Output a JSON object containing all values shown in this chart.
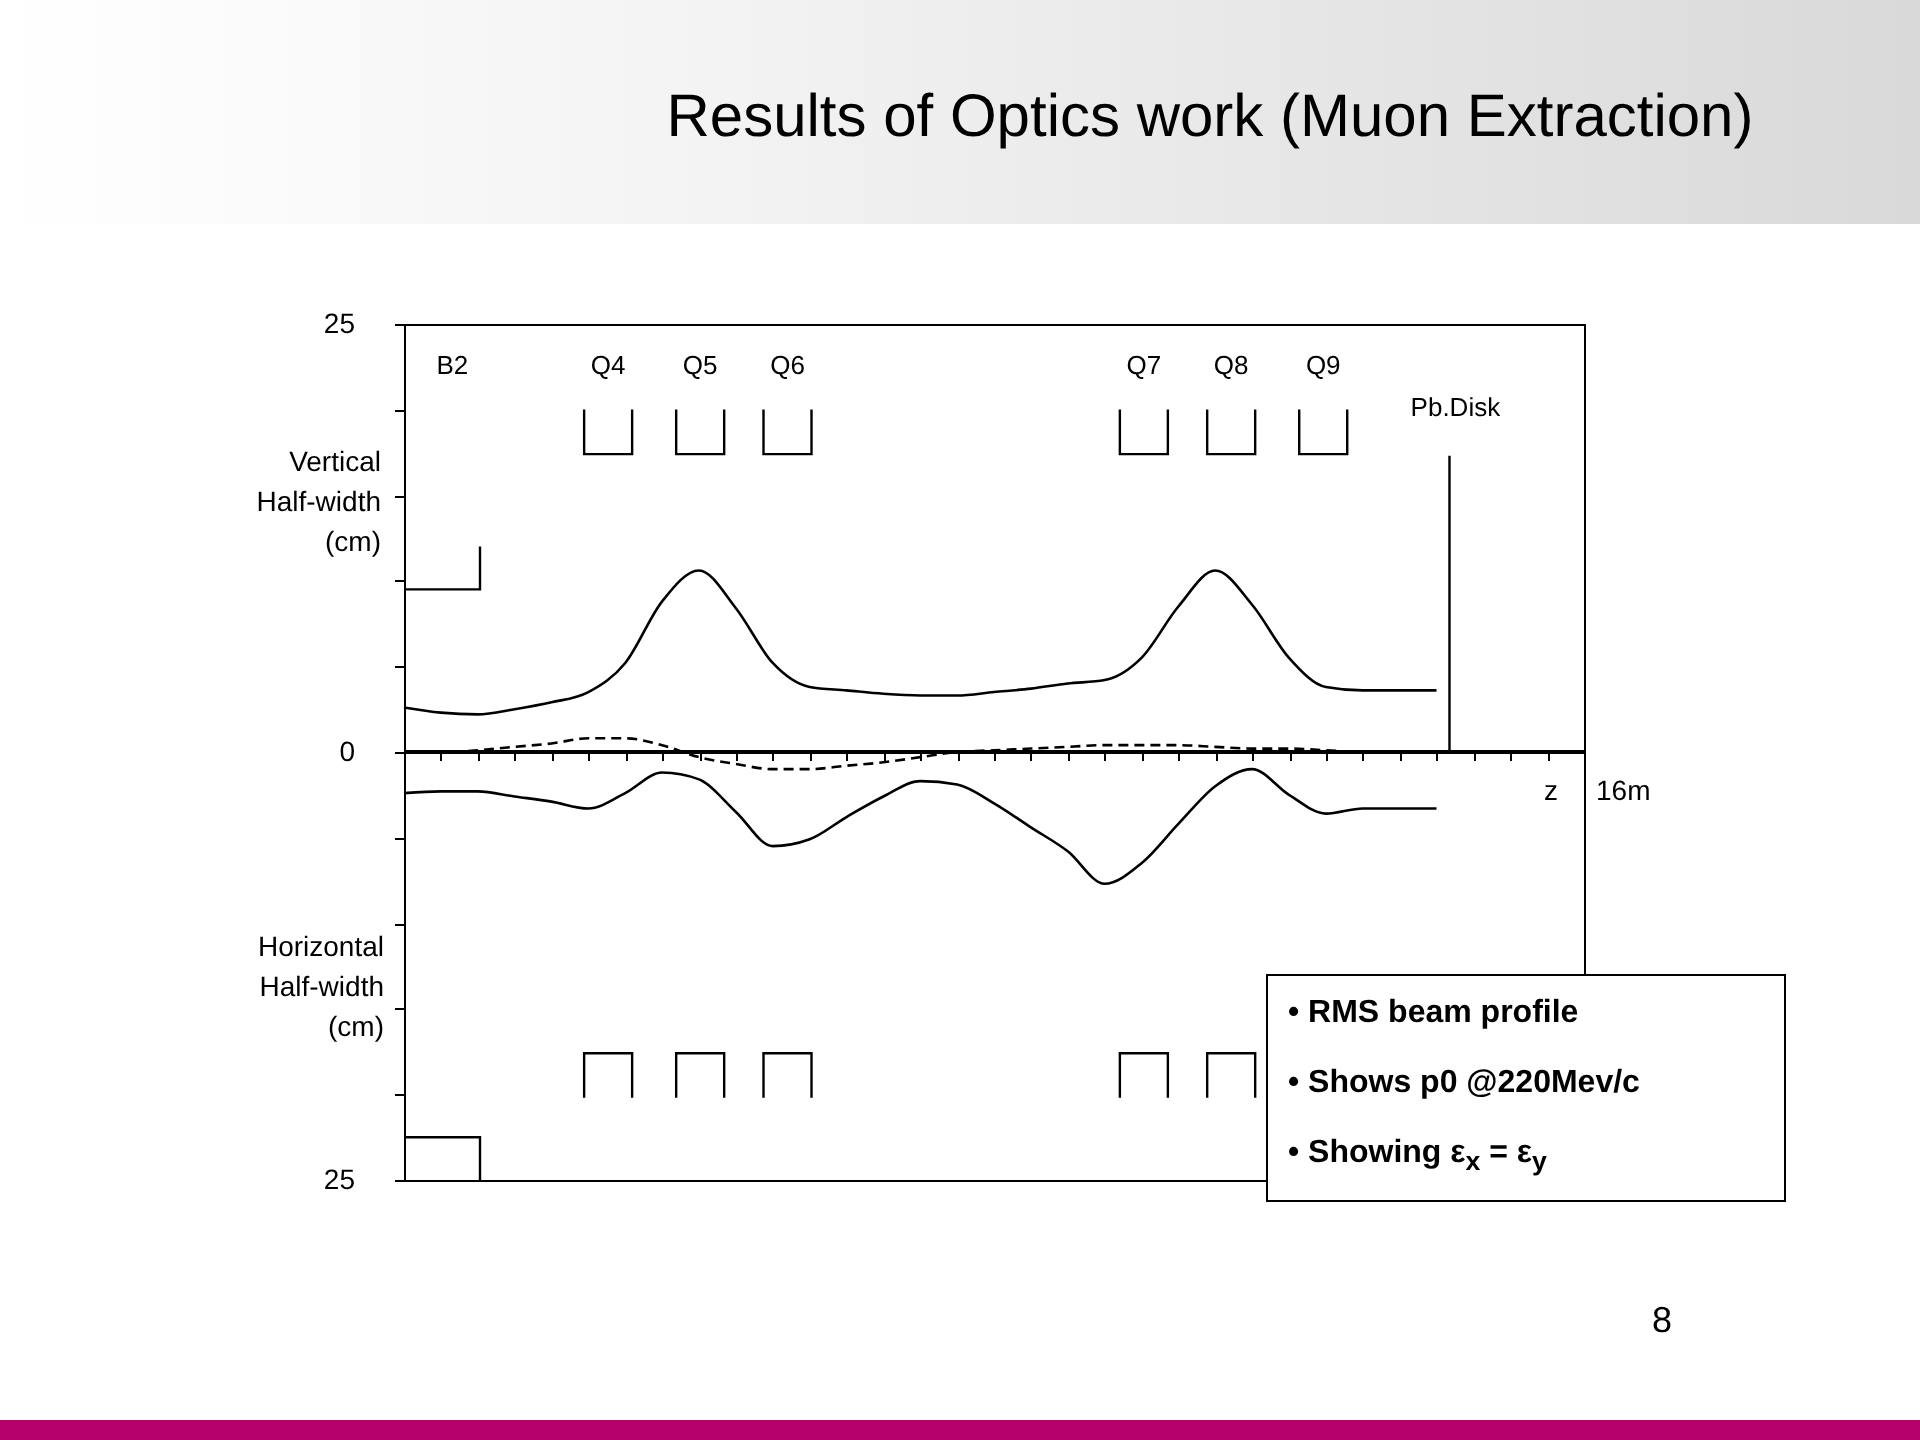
{
  "chart_data": {
    "type": "line",
    "title": "Results of Optics work (Muon Extraction)",
    "ylabel": "Vertical Half-width (cm)",
    "xlabel": "z",
    "categories": [
      null,
      null,
      null,
      null,
      null,
      null,
      null,
      null,
      null,
      null,
      null,
      null,
      null,
      null,
      null,
      null,
      null,
      null,
      null,
      null,
      null,
      null,
      null,
      null,
      null,
      null,
      null,
      null,
      null,
      null,
      null,
      null,
      null
    ],
    "series": [
      {
        "color": "#000000",
        "line_style": "solid",
        "values": [
          2.6,
          2.3,
          2.2,
          2.5,
          2.9,
          3.5,
          5.2,
          8.8,
          10.6,
          8.4,
          5.2,
          3.8,
          3.6,
          3.4,
          3.3,
          3.3,
          3.5,
          3.7,
          4.0,
          4.2,
          5.5,
          8.5,
          10.6,
          8.6,
          5.5,
          3.8,
          3.6,
          3.6,
          3.6,
          null,
          null,
          null,
          null
        ]
      },
      {
        "color": "#000000",
        "line_style": "solid",
        "values": [
          -2.4,
          -2.3,
          -2.3,
          -2.6,
          -2.9,
          -3.3,
          -2.4,
          -1.2,
          -1.6,
          -3.5,
          -5.5,
          -5.1,
          -3.8,
          -2.6,
          -1.7,
          -1.9,
          -3.0,
          -4.4,
          -5.8,
          -7.7,
          -6.5,
          -4.2,
          -2.0,
          -1.0,
          -2.5,
          -3.6,
          -3.3,
          -3.3,
          -3.3,
          null,
          null,
          null,
          null
        ]
      },
      {
        "color": "#000000",
        "line_style": "dashed",
        "values": [
          0,
          0,
          0.1,
          0.3,
          0.5,
          0.8,
          0.8,
          0.4,
          -0.3,
          -0.7,
          -1.0,
          -1.0,
          -0.8,
          -0.6,
          -0.3,
          0,
          0.1,
          0.2,
          0.3,
          0.4,
          0.4,
          0.4,
          0.3,
          0.2,
          0.2,
          0.1,
          0,
          0,
          0,
          null,
          null,
          null,
          null
        ]
      }
    ],
    "ylim": [
      -25,
      25
    ],
    "yticks": [
      {
        "value": -25,
        "label": "25"
      },
      {
        "value": -20,
        "label": null
      },
      {
        "value": -15,
        "label": null
      },
      {
        "value": -10,
        "label": null
      },
      {
        "value": -5,
        "label": null
      },
      0,
      {
        "value": 5,
        "label": null
      },
      {
        "value": 10,
        "label": null
      },
      {
        "value": 15,
        "label": null
      },
      {
        "value": 20,
        "label": null
      },
      {
        "value": 25,
        "label": "25"
      }
    ],
    "grid": false,
    "marker": "none",
    "ref_lines": [
      {
        "axis": "y",
        "value": 0,
        "color": "#000000"
      }
    ],
    "annotations": [
      "B2",
      "Q4",
      "Q5",
      "Q6",
      "Q7",
      "Q8",
      "Q9",
      "Pb.Disk",
      "Horizontal Half-width (cm)",
      "• RMS beam profile",
      "• Shows p0 @220Mev/c",
      "• Showing ε$_{x}$ = ε$_{y}$",
      "8",
      "16m"
    ]
  }
}
